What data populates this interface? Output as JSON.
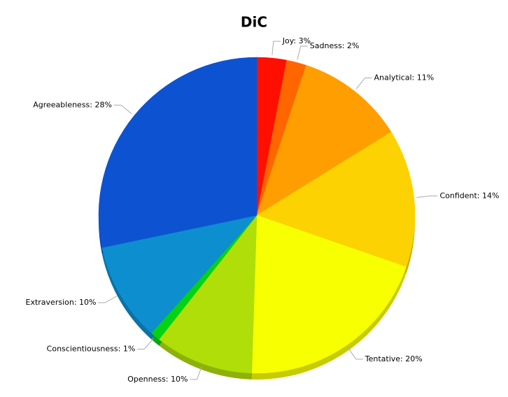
{
  "chart_data": {
    "type": "pie",
    "title": "DiC",
    "values": [
      3,
      2,
      11,
      14,
      20,
      10,
      1,
      10,
      28
    ],
    "value_labels": [
      "Joy: 3%",
      "Sadness: 2%",
      "Analytical: 11%",
      "Confident: 14%",
      "Tentative: 20%",
      "Openness: 10%",
      "Conscientiousness: 1%",
      "Extraversion: 10%",
      "Agreeableness: 28%"
    ],
    "colors": [
      "#ff0f00",
      "#ff6600",
      "#ff9e01",
      "#fcd202",
      "#f8ff01",
      "#b0de09",
      "#04d215",
      "#0d8ecf",
      "#0d52d1"
    ]
  }
}
